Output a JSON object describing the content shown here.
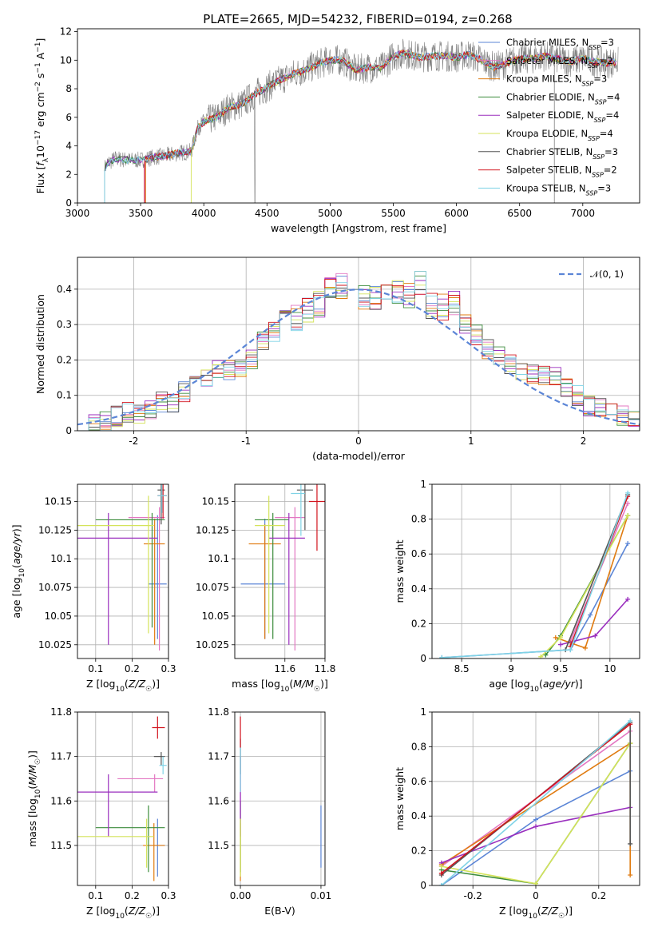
{
  "figure_title": "PLATE=2665, MJD=54232, FIBERID=0194, z=0.268",
  "colors": {
    "Chabrier MILES": "#5b85d6",
    "Salpeter MILES": "#e377c2",
    "Kroupa MILES": "#e07b10",
    "Chabrier ELODIE": "#3c8c3c",
    "Salpeter ELODIE": "#9a2fbe",
    "Kroupa ELODIE": "#d4e35a",
    "Chabrier STELIB": "#555555",
    "Salpeter STELIB": "#d2141e",
    "Kroupa STELIB": "#7fd3e6",
    "normal": "#5b85d6"
  },
  "legend_spectrum": [
    {
      "name": "Chabrier MILES",
      "n": "3"
    },
    {
      "name": "Salpeter MILES",
      "n": "2"
    },
    {
      "name": "Kroupa MILES",
      "n": "3"
    },
    {
      "name": "Chabrier ELODIE",
      "n": "4"
    },
    {
      "name": "Salpeter ELODIE",
      "n": "4"
    },
    {
      "name": "Kroupa ELODIE",
      "n": "4"
    },
    {
      "name": "Chabrier STELIB",
      "n": "3"
    },
    {
      "name": "Salpeter STELIB",
      "n": "2"
    },
    {
      "name": "Kroupa STELIB",
      "n": "3"
    }
  ],
  "legend_nssp_prefix": "N",
  "legend_nssp_sub": "SSP",
  "legend_normal": "𝒩(0, 1)",
  "chart_data": [
    {
      "id": "spectrum",
      "type": "line",
      "xlabel": "wavelength [Angstrom, rest frame]",
      "ylabel": "Flux [f_λ 10^-17 erg cm^-2 s^-1 A^-1]",
      "xlim": [
        3000,
        7450
      ],
      "ylim": [
        0,
        12.2
      ],
      "xticks": [
        3000,
        3500,
        4000,
        4500,
        5000,
        5500,
        6000,
        6500,
        7000
      ],
      "yticks": [
        0,
        2,
        4,
        6,
        8,
        10,
        12
      ],
      "grid": false,
      "envelope": {
        "x": [
          3210,
          3240,
          3300,
          3400,
          3500,
          3600,
          3700,
          3800,
          3900,
          3950,
          4000,
          4100,
          4200,
          4300,
          4400,
          4500,
          4600,
          4700,
          4800,
          4900,
          5000,
          5100,
          5200,
          5300,
          5400,
          5500,
          5600,
          5700,
          5800,
          5900,
          6000,
          6100,
          6200,
          6300,
          6400,
          6500,
          6600,
          6700,
          6800,
          6900,
          7000,
          7100,
          7200,
          7270
        ],
        "y": [
          2.4,
          2.8,
          3.1,
          3.0,
          3.0,
          3.2,
          3.3,
          3.5,
          3.6,
          5.2,
          5.7,
          6.0,
          6.7,
          6.9,
          7.6,
          8.1,
          8.6,
          9.0,
          9.3,
          9.7,
          10.0,
          10.0,
          9.3,
          9.5,
          9.4,
          10.3,
          10.5,
          10.2,
          10.3,
          10.3,
          10.2,
          10.4,
          10.0,
          9.5,
          9.8,
          10.1,
          10.1,
          10.3,
          10.1,
          9.9,
          10.1,
          9.9,
          9.8,
          9.9
        ]
      },
      "notes_series": "9 model fits plus observed spectrum (grey)"
    },
    {
      "id": "residuals",
      "type": "histogram",
      "xlabel": "(data-model)/error",
      "ylabel": "Normed distribution",
      "xlim": [
        -2.5,
        2.5
      ],
      "ylim": [
        0,
        0.49
      ],
      "xticks": [
        -2,
        -1,
        0,
        1,
        2
      ],
      "yticks": [
        0.0,
        0.1,
        0.2,
        0.3,
        0.4
      ],
      "grid": true,
      "bin_edges": [
        -2.5,
        -2.4,
        -2.3,
        -2.2,
        -2.1,
        -2.0,
        -1.9,
        -1.8,
        -1.7,
        -1.6,
        -1.5,
        -1.4,
        -1.3,
        -1.2,
        -1.1,
        -1.0,
        -0.9,
        -0.8,
        -0.7,
        -0.6,
        -0.5,
        -0.4,
        -0.3,
        -0.2,
        -0.1,
        0.0,
        0.1,
        0.2,
        0.3,
        0.4,
        0.5,
        0.6,
        0.7,
        0.8,
        0.9,
        1.0,
        1.1,
        1.2,
        1.3,
        1.4,
        1.5,
        1.6,
        1.7,
        1.8,
        1.9,
        2.0,
        2.1,
        2.2,
        2.3,
        2.4,
        2.5
      ],
      "base_heights": [
        0.02,
        0.02,
        0.03,
        0.04,
        0.05,
        0.05,
        0.06,
        0.08,
        0.08,
        0.11,
        0.13,
        0.15,
        0.17,
        0.17,
        0.18,
        0.2,
        0.25,
        0.28,
        0.31,
        0.32,
        0.34,
        0.36,
        0.4,
        0.41,
        0.42,
        0.38,
        0.38,
        0.39,
        0.39,
        0.38,
        0.42,
        0.35,
        0.35,
        0.36,
        0.3,
        0.27,
        0.23,
        0.21,
        0.19,
        0.17,
        0.16,
        0.16,
        0.15,
        0.12,
        0.1,
        0.07,
        0.07,
        0.05,
        0.04,
        0.03
      ],
      "normal_curve": {
        "name": "𝒩(0, 1)",
        "mean": 0,
        "sigma": 1
      }
    },
    {
      "id": "age_vs_Z",
      "type": "scatter",
      "xlabel": "Z [log10(Z/Z☉)]",
      "ylabel": "age [log10(age/yr)]",
      "xlim": [
        0.05,
        0.3
      ],
      "ylim": [
        10.013,
        10.165
      ],
      "xticks": [
        0.1,
        0.2,
        0.3
      ],
      "yticks": [
        10.025,
        10.05,
        10.075,
        10.1,
        10.125,
        10.15
      ],
      "grid": true,
      "points": [
        {
          "model": "Chabrier MILES",
          "x": 0.27,
          "xerr": [
            0.245,
            0.295
          ],
          "y": 10.078,
          "yerr": [
            10.03,
            10.138
          ]
        },
        {
          "model": "Salpeter MILES",
          "x": 0.275,
          "xerr": [
            0.19,
            0.29
          ],
          "y": 10.136,
          "yerr": [
            10.02,
            10.145
          ]
        },
        {
          "model": "Kroupa MILES",
          "x": 0.262,
          "xerr": [
            0.232,
            0.29
          ],
          "y": 10.113,
          "yerr": [
            10.025,
            10.135
          ]
        },
        {
          "model": "Chabrier ELODIE",
          "x": 0.255,
          "xerr": [
            0.1,
            0.29
          ],
          "y": 10.134,
          "yerr": [
            10.04,
            10.14
          ]
        },
        {
          "model": "Salpeter ELODIE",
          "x": 0.135,
          "xerr": [
            0.05,
            0.27
          ],
          "y": 10.118,
          "yerr": [
            10.025,
            10.14
          ]
        },
        {
          "model": "Kroupa ELODIE",
          "x": 0.245,
          "xerr": [
            0.05,
            0.26
          ],
          "y": 10.129,
          "yerr": [
            10.035,
            10.155
          ]
        },
        {
          "model": "Chabrier STELIB",
          "x": 0.28,
          "xerr": [
            0.27,
            0.29
          ],
          "y": 10.16,
          "yerr": [
            10.13,
            10.165
          ]
        },
        {
          "model": "Salpeter STELIB",
          "x": 0.285,
          "xerr": [
            0.27,
            0.295
          ],
          "y": 10.155,
          "yerr": [
            10.135,
            10.165
          ]
        },
        {
          "model": "Kroupa STELIB",
          "x": 0.282,
          "xerr": [
            0.27,
            0.295
          ],
          "y": 10.155,
          "yerr": [
            10.14,
            10.165
          ]
        }
      ]
    },
    {
      "id": "age_vs_mass",
      "type": "scatter",
      "xlabel": "mass [log10(M/M☉)]",
      "ylabel": "",
      "xlim": [
        11.35,
        11.8
      ],
      "ylim": [
        10.013,
        10.165
      ],
      "xticks": [
        11.6,
        11.8
      ],
      "yticks": [
        10.025,
        10.05,
        10.075,
        10.1,
        10.125,
        10.15
      ],
      "grid": true,
      "points": [
        {
          "model": "Chabrier MILES",
          "x": 11.5,
          "xerr": [
            11.38,
            11.6
          ],
          "y": 10.078,
          "yerr": [
            10.03,
            10.135
          ]
        },
        {
          "model": "Salpeter MILES",
          "x": 11.65,
          "xerr": [
            11.55,
            11.7
          ],
          "y": 10.136,
          "yerr": [
            10.02,
            10.145
          ]
        },
        {
          "model": "Kroupa MILES",
          "x": 11.5,
          "xerr": [
            11.42,
            11.58
          ],
          "y": 10.113,
          "yerr": [
            10.03,
            10.13
          ]
        },
        {
          "model": "Chabrier ELODIE",
          "x": 11.54,
          "xerr": [
            11.45,
            11.62
          ],
          "y": 10.134,
          "yerr": [
            10.03,
            10.14
          ]
        },
        {
          "model": "Salpeter ELODIE",
          "x": 11.62,
          "xerr": [
            11.52,
            11.7
          ],
          "y": 10.118,
          "yerr": [
            10.025,
            10.14
          ]
        },
        {
          "model": "Kroupa ELODIE",
          "x": 11.52,
          "xerr": [
            11.45,
            11.6
          ],
          "y": 10.129,
          "yerr": [
            10.035,
            10.155
          ]
        },
        {
          "model": "Chabrier STELIB",
          "x": 11.7,
          "xerr": [
            11.66,
            11.74
          ],
          "y": 10.16,
          "yerr": [
            10.125,
            10.165
          ]
        },
        {
          "model": "Salpeter STELIB",
          "x": 11.76,
          "xerr": [
            11.72,
            11.8
          ],
          "y": 10.15,
          "yerr": [
            10.107,
            10.165
          ]
        },
        {
          "model": "Kroupa STELIB",
          "x": 11.68,
          "xerr": [
            11.63,
            11.7
          ],
          "y": 10.157,
          "yerr": [
            10.12,
            10.165
          ]
        }
      ]
    },
    {
      "id": "mass_weight_vs_age",
      "type": "line",
      "xlabel": "age [log10(age/yr)]",
      "ylabel": "mass weight",
      "xlim": [
        8.2,
        10.3
      ],
      "ylim": [
        0,
        1.0
      ],
      "xticks": [
        8.5,
        9.0,
        9.5,
        10.0
      ],
      "yticks": [
        0.0,
        0.2,
        0.4,
        0.6,
        0.8,
        1.0
      ],
      "grid": true,
      "series": [
        {
          "model": "Chabrier MILES",
          "x": [
            8.3,
            9.6,
            9.8,
            10.18
          ],
          "y": [
            0.005,
            0.05,
            0.25,
            0.66
          ]
        },
        {
          "model": "Salpeter MILES",
          "x": [
            9.6,
            10.18
          ],
          "y": [
            0.1,
            0.89
          ]
        },
        {
          "model": "Kroupa MILES",
          "x": [
            9.45,
            9.6,
            9.75,
            10.18
          ],
          "y": [
            0.12,
            0.09,
            0.06,
            0.82
          ]
        },
        {
          "model": "Chabrier ELODIE",
          "x": [
            9.35,
            9.5,
            10.18
          ],
          "y": [
            0.02,
            0.13,
            0.82
          ]
        },
        {
          "model": "Salpeter ELODIE",
          "x": [
            9.5,
            9.85,
            10.18
          ],
          "y": [
            0.08,
            0.13,
            0.34
          ]
        },
        {
          "model": "Kroupa ELODIE",
          "x": [
            9.3,
            9.5,
            10.18
          ],
          "y": [
            0.01,
            0.12,
            0.82
          ]
        },
        {
          "model": "Chabrier STELIB",
          "x": [
            9.55,
            10.18
          ],
          "y": [
            0.05,
            0.94
          ]
        },
        {
          "model": "Salpeter STELIB",
          "x": [
            9.6,
            10.18
          ],
          "y": [
            0.07,
            0.93
          ]
        },
        {
          "model": "Kroupa STELIB",
          "x": [
            8.3,
            9.6,
            10.18
          ],
          "y": [
            0.005,
            0.05,
            0.95
          ]
        }
      ]
    },
    {
      "id": "mass_vs_Z",
      "type": "scatter",
      "xlabel": "Z [log10(Z/Z☉)]",
      "ylabel": "mass [log10(M/M☉)]",
      "xlim": [
        0.05,
        0.3
      ],
      "ylim": [
        11.41,
        11.8
      ],
      "xticks": [
        0.1,
        0.2,
        0.3
      ],
      "yticks": [
        11.5,
        11.6,
        11.7,
        11.8
      ],
      "grid": true,
      "points": [
        {
          "model": "Chabrier MILES",
          "x": 0.27,
          "xerr": [
            0.245,
            0.29
          ],
          "y": 11.5,
          "yerr": [
            11.43,
            11.56
          ]
        },
        {
          "model": "Salpeter MILES",
          "x": 0.262,
          "xerr": [
            0.16,
            0.285
          ],
          "y": 11.65,
          "yerr": [
            11.62,
            11.66
          ]
        },
        {
          "model": "Kroupa MILES",
          "x": 0.26,
          "xerr": [
            0.23,
            0.29
          ],
          "y": 11.5,
          "yerr": [
            11.42,
            11.55
          ]
        },
        {
          "model": "Chabrier ELODIE",
          "x": 0.245,
          "xerr": [
            0.1,
            0.29
          ],
          "y": 11.54,
          "yerr": [
            11.44,
            11.59
          ]
        },
        {
          "model": "Salpeter ELODIE",
          "x": 0.135,
          "xerr": [
            0.05,
            0.27
          ],
          "y": 11.62,
          "yerr": [
            11.52,
            11.66
          ]
        },
        {
          "model": "Kroupa ELODIE",
          "x": 0.24,
          "xerr": [
            0.05,
            0.26
          ],
          "y": 11.52,
          "yerr": [
            11.45,
            11.56
          ]
        },
        {
          "model": "Chabrier STELIB",
          "x": 0.28,
          "xerr": [
            0.26,
            0.29
          ],
          "y": 11.7,
          "yerr": [
            11.68,
            11.71
          ]
        },
        {
          "model": "Salpeter STELIB",
          "x": 0.27,
          "xerr": [
            0.255,
            0.29
          ],
          "y": 11.765,
          "yerr": [
            11.74,
            11.79
          ]
        },
        {
          "model": "Kroupa STELIB",
          "x": 0.285,
          "xerr": [
            0.275,
            0.295
          ],
          "y": 11.68,
          "yerr": [
            11.66,
            11.7
          ]
        }
      ]
    },
    {
      "id": "mass_vs_ebv",
      "type": "scatter",
      "xlabel": "E(B-V)",
      "ylabel": "",
      "xlim": [
        -0.0007,
        0.0105
      ],
      "ylim": [
        11.41,
        11.8
      ],
      "xticks": [
        0.0,
        0.01
      ],
      "tick_labels": [
        "0.00",
        "0.01"
      ],
      "yticks": [
        11.5,
        11.6,
        11.7,
        11.8
      ],
      "grid": true,
      "points": [
        {
          "model": "Chabrier MILES",
          "x": 0.01,
          "y": 11.5,
          "yerr": [
            11.45,
            11.59
          ]
        },
        {
          "model": "Salpeter MILES",
          "x": 0.0,
          "y": 11.65,
          "yerr": [
            11.55,
            11.72
          ]
        },
        {
          "model": "Kroupa MILES",
          "x": 0.0,
          "y": 11.5,
          "yerr": [
            11.42,
            11.55
          ]
        },
        {
          "model": "Chabrier ELODIE",
          "x": 0.0,
          "y": 11.54,
          "yerr": [
            11.44,
            11.6
          ]
        },
        {
          "model": "Salpeter ELODIE",
          "x": 0.0,
          "y": 11.62,
          "yerr": [
            11.52,
            11.7
          ]
        },
        {
          "model": "Kroupa ELODIE",
          "x": 0.0,
          "y": 11.52,
          "yerr": [
            11.43,
            11.56
          ]
        },
        {
          "model": "Chabrier STELIB",
          "x": 0.0,
          "y": 11.7,
          "yerr": [
            11.66,
            11.74
          ]
        },
        {
          "model": "Salpeter STELIB",
          "x": 0.0,
          "y": 11.76,
          "yerr": [
            11.72,
            11.79
          ]
        },
        {
          "model": "Kroupa STELIB",
          "x": 0.0,
          "y": 11.68,
          "yerr": [
            11.62,
            11.72
          ]
        }
      ]
    },
    {
      "id": "mass_weight_vs_Z",
      "type": "line",
      "xlabel": "Z [log10(Z/Z☉)]",
      "ylabel": "mass weight",
      "xlim": [
        -0.33,
        0.33
      ],
      "ylim": [
        0,
        1.0
      ],
      "xticks": [
        -0.2,
        0.0,
        0.2
      ],
      "yticks": [
        0.0,
        0.2,
        0.4,
        0.6,
        0.8,
        1.0
      ],
      "grid": true,
      "series": [
        {
          "model": "Chabrier MILES",
          "x": [
            -0.3,
            0.0,
            0.3
          ],
          "y": [
            0.0,
            0.38,
            0.66
          ]
        },
        {
          "model": "Salpeter MILES",
          "x": [
            -0.3,
            0.3
          ],
          "y": [
            0.11,
            0.89
          ]
        },
        {
          "model": "Kroupa MILES",
          "x": [
            -0.3,
            0.3,
            0.3
          ],
          "y": [
            0.12,
            0.82,
            0.06
          ]
        },
        {
          "model": "Chabrier ELODIE",
          "x": [
            -0.3,
            0.0,
            0.3
          ],
          "y": [
            0.09,
            0.01,
            0.82
          ]
        },
        {
          "model": "Salpeter ELODIE",
          "x": [
            -0.3,
            0.0,
            0.3
          ],
          "y": [
            0.13,
            0.34,
            0.45
          ]
        },
        {
          "model": "Kroupa ELODIE",
          "x": [
            -0.3,
            0.0,
            0.3
          ],
          "y": [
            0.11,
            0.01,
            0.82
          ]
        },
        {
          "model": "Chabrier STELIB",
          "x": [
            -0.3,
            0.3,
            0.3
          ],
          "y": [
            0.06,
            0.94,
            0.24
          ]
        },
        {
          "model": "Salpeter STELIB",
          "x": [
            -0.3,
            0.3
          ],
          "y": [
            0.07,
            0.93
          ]
        },
        {
          "model": "Kroupa STELIB",
          "x": [
            -0.3,
            0.3
          ],
          "y": [
            0.0,
            0.95
          ]
        }
      ]
    }
  ]
}
